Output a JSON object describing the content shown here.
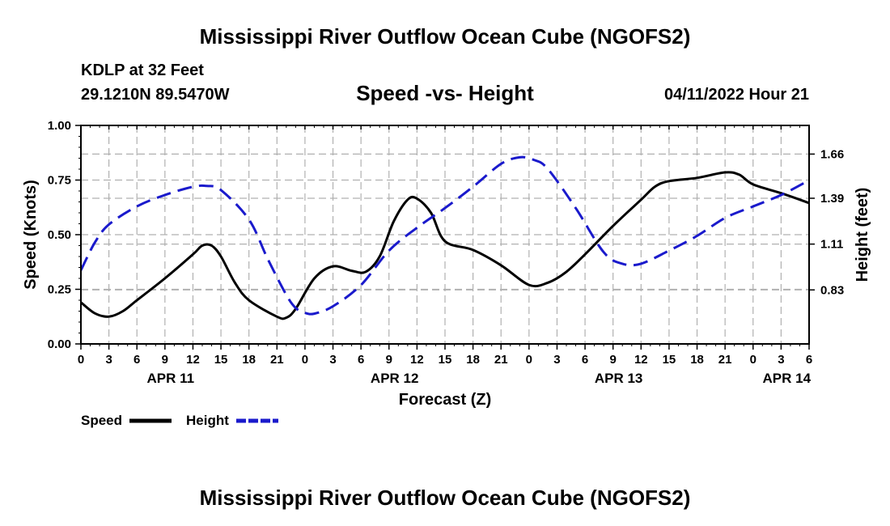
{
  "header": {
    "title": "Mississippi River Outflow Ocean Cube (NGOFS2)",
    "station": "KDLP at 32 Feet",
    "coords": "29.1210N  89.5470W",
    "timestamp": "04/11/2022 Hour 21"
  },
  "footer": {
    "title": "Mississippi River Outflow Ocean Cube (NGOFS2)"
  },
  "colors": {
    "speed": "#000000",
    "height": "#1a1acc",
    "grid": "#b0b0b0"
  },
  "chart_data": {
    "type": "line",
    "title": "Speed -vs- Height",
    "xlabel": "Forecast (Z)",
    "ylabel": "Speed (Knots)",
    "y2label": "Height (feet)",
    "x_unit": "hours from APR 11 00Z",
    "xlim": [
      0,
      78
    ],
    "ylim": [
      0,
      1.0
    ],
    "y2lim": [
      0.5,
      1.835
    ],
    "x_ticks": [
      {
        "x": 0,
        "label": "0"
      },
      {
        "x": 3,
        "label": "3"
      },
      {
        "x": 6,
        "label": "6"
      },
      {
        "x": 9,
        "label": "9"
      },
      {
        "x": 12,
        "label": "12"
      },
      {
        "x": 15,
        "label": "15"
      },
      {
        "x": 18,
        "label": "18"
      },
      {
        "x": 21,
        "label": "21"
      },
      {
        "x": 24,
        "label": "0"
      },
      {
        "x": 27,
        "label": "3"
      },
      {
        "x": 30,
        "label": "6"
      },
      {
        "x": 33,
        "label": "9"
      },
      {
        "x": 36,
        "label": "12"
      },
      {
        "x": 39,
        "label": "15"
      },
      {
        "x": 42,
        "label": "18"
      },
      {
        "x": 45,
        "label": "21"
      },
      {
        "x": 48,
        "label": "0"
      },
      {
        "x": 51,
        "label": "3"
      },
      {
        "x": 54,
        "label": "6"
      },
      {
        "x": 57,
        "label": "9"
      },
      {
        "x": 60,
        "label": "12"
      },
      {
        "x": 63,
        "label": "15"
      },
      {
        "x": 66,
        "label": "18"
      },
      {
        "x": 69,
        "label": "21"
      },
      {
        "x": 72,
        "label": "0"
      },
      {
        "x": 75,
        "label": "3"
      },
      {
        "x": 78,
        "label": "6"
      }
    ],
    "date_labels": [
      {
        "x": 9.6,
        "label": "APR 11"
      },
      {
        "x": 33.6,
        "label": "APR 12"
      },
      {
        "x": 57.6,
        "label": "APR 13"
      },
      {
        "x": 75.6,
        "label": "APR 14"
      }
    ],
    "y_ticks": [
      {
        "v": 0.0,
        "label": "0.00"
      },
      {
        "v": 0.25,
        "label": "0.25"
      },
      {
        "v": 0.5,
        "label": "0.50"
      },
      {
        "v": 0.75,
        "label": "0.75"
      },
      {
        "v": 1.0,
        "label": "1.00"
      }
    ],
    "y2_ticks": [
      {
        "v": 0.83,
        "label": "0.83"
      },
      {
        "v": 1.11,
        "label": "1.11"
      },
      {
        "v": 1.39,
        "label": "1.39"
      },
      {
        "v": 1.66,
        "label": "1.66"
      }
    ],
    "series": [
      {
        "name": "Speed",
        "axis": "left",
        "style": "solid",
        "x": [
          0,
          1.5,
          3,
          4.5,
          6,
          9,
          12,
          13,
          14,
          15,
          16.5,
          18,
          21,
          22,
          23,
          25,
          27,
          29,
          30.5,
          32,
          33.5,
          35,
          36,
          37.5,
          39,
          42,
          45,
          48,
          50,
          52,
          54,
          57,
          60,
          61.5,
          63,
          66,
          69,
          70.5,
          72,
          75,
          78
        ],
        "values": [
          0.19,
          0.14,
          0.125,
          0.15,
          0.2,
          0.3,
          0.41,
          0.45,
          0.45,
          0.4,
          0.28,
          0.2,
          0.125,
          0.12,
          0.16,
          0.3,
          0.355,
          0.335,
          0.33,
          0.4,
          0.56,
          0.66,
          0.665,
          0.6,
          0.47,
          0.43,
          0.36,
          0.27,
          0.28,
          0.33,
          0.41,
          0.54,
          0.66,
          0.72,
          0.745,
          0.76,
          0.785,
          0.775,
          0.73,
          0.69,
          0.645
        ]
      },
      {
        "name": "Height",
        "axis": "right",
        "style": "dashed",
        "x": [
          0,
          1.5,
          3,
          6,
          9,
          12,
          13.5,
          15,
          18,
          20,
          22,
          23,
          24,
          25,
          27,
          30,
          33,
          36,
          39,
          42,
          45,
          47,
          48.5,
          50,
          53,
          56,
          58,
          60,
          63,
          66,
          69,
          72,
          75,
          78
        ],
        "values": [
          0.95,
          1.12,
          1.23,
          1.34,
          1.41,
          1.46,
          1.465,
          1.44,
          1.26,
          1.02,
          0.8,
          0.72,
          0.69,
          0.685,
          0.73,
          0.86,
          1.07,
          1.21,
          1.33,
          1.46,
          1.6,
          1.64,
          1.625,
          1.57,
          1.33,
          1.06,
          0.99,
          0.99,
          1.07,
          1.16,
          1.27,
          1.34,
          1.41,
          1.5
        ]
      }
    ],
    "legend": [
      {
        "name": "Speed",
        "style": "solid"
      },
      {
        "name": "Height",
        "style": "dashed"
      }
    ]
  }
}
